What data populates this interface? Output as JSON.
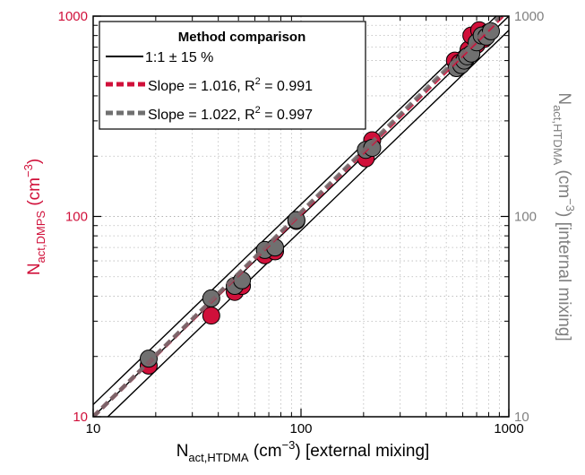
{
  "chart_data": {
    "type": "scatter",
    "x_scale": "log",
    "y_scale": "log",
    "xlim": [
      10,
      1000
    ],
    "ylim": [
      10,
      1000
    ],
    "grid": true,
    "x_ticks": [
      {
        "value": 10,
        "label": "10"
      },
      {
        "value": 100,
        "label": "100"
      },
      {
        "value": 1000,
        "label": "1000"
      }
    ],
    "y_left_ticks": [
      {
        "value": 10,
        "label": "10"
      },
      {
        "value": 100,
        "label": "100"
      },
      {
        "value": 1000,
        "label": "1000"
      }
    ],
    "y_right_ticks": [
      {
        "value": 10,
        "label": "10"
      },
      {
        "value": 100,
        "label": "100"
      },
      {
        "value": 1000,
        "label": "1000"
      }
    ],
    "xlabel": {
      "main": "N",
      "sub": "act,HTDMA",
      "mid": " (cm",
      "sup": "−3",
      "end": ")   [external mixing]"
    },
    "ylabel_left": {
      "main": "N",
      "sub": "act,DMPS",
      "mid": " (cm",
      "sup": "−3",
      "end": ")"
    },
    "ylabel_right": {
      "main": "N",
      "sub": "act,HTDMA",
      "mid": " (cm",
      "sup": "−3",
      "end": ")   [internal mixing]"
    },
    "legend": {
      "title": "Method comparison",
      "position": "top-left",
      "entries": [
        {
          "text": "1:1 ± 15 %",
          "color": "#000000",
          "style": "solid"
        },
        {
          "pre": "Slope = 1.016, R",
          "sup": "2",
          "post": " = 0.991",
          "color": "#d0103a",
          "style": "dashed"
        },
        {
          "pre": "Slope = 1.022, R",
          "sup": "2",
          "post": " = 0.997",
          "color": "#707070",
          "style": "dashed"
        }
      ]
    },
    "reference_lines": [
      {
        "factor": 1.0,
        "color": "#000000"
      },
      {
        "factor": 1.15,
        "color": "#000000"
      },
      {
        "factor": 0.85,
        "color": "#000000"
      }
    ],
    "fit_lines": [
      {
        "slope": 1.016,
        "color": "#d0103a"
      },
      {
        "slope": 1.022,
        "color": "#707070"
      }
    ],
    "series": [
      {
        "color": "#d0103a",
        "points": [
          {
            "x": 18.5,
            "y": 18
          },
          {
            "x": 37,
            "y": 32
          },
          {
            "x": 48,
            "y": 42
          },
          {
            "x": 52,
            "y": 45
          },
          {
            "x": 67,
            "y": 64
          },
          {
            "x": 75,
            "y": 67
          },
          {
            "x": 95,
            "y": 95
          },
          {
            "x": 205,
            "y": 195
          },
          {
            "x": 220,
            "y": 240
          },
          {
            "x": 550,
            "y": 600
          },
          {
            "x": 580,
            "y": 585
          },
          {
            "x": 620,
            "y": 610
          },
          {
            "x": 640,
            "y": 680
          },
          {
            "x": 660,
            "y": 800
          },
          {
            "x": 700,
            "y": 720
          },
          {
            "x": 720,
            "y": 850
          },
          {
            "x": 760,
            "y": 770
          },
          {
            "x": 800,
            "y": 830
          }
        ]
      },
      {
        "color": "#707070",
        "points": [
          {
            "x": 18.5,
            "y": 19.5
          },
          {
            "x": 37,
            "y": 39
          },
          {
            "x": 48,
            "y": 45
          },
          {
            "x": 52,
            "y": 48
          },
          {
            "x": 67,
            "y": 68
          },
          {
            "x": 75,
            "y": 70
          },
          {
            "x": 95,
            "y": 96
          },
          {
            "x": 205,
            "y": 215
          },
          {
            "x": 220,
            "y": 220
          },
          {
            "x": 560,
            "y": 550
          },
          {
            "x": 590,
            "y": 570
          },
          {
            "x": 610,
            "y": 600
          },
          {
            "x": 630,
            "y": 630
          },
          {
            "x": 660,
            "y": 650
          },
          {
            "x": 700,
            "y": 740
          },
          {
            "x": 740,
            "y": 800
          },
          {
            "x": 780,
            "y": 790
          },
          {
            "x": 820,
            "y": 840
          }
        ]
      }
    ]
  }
}
